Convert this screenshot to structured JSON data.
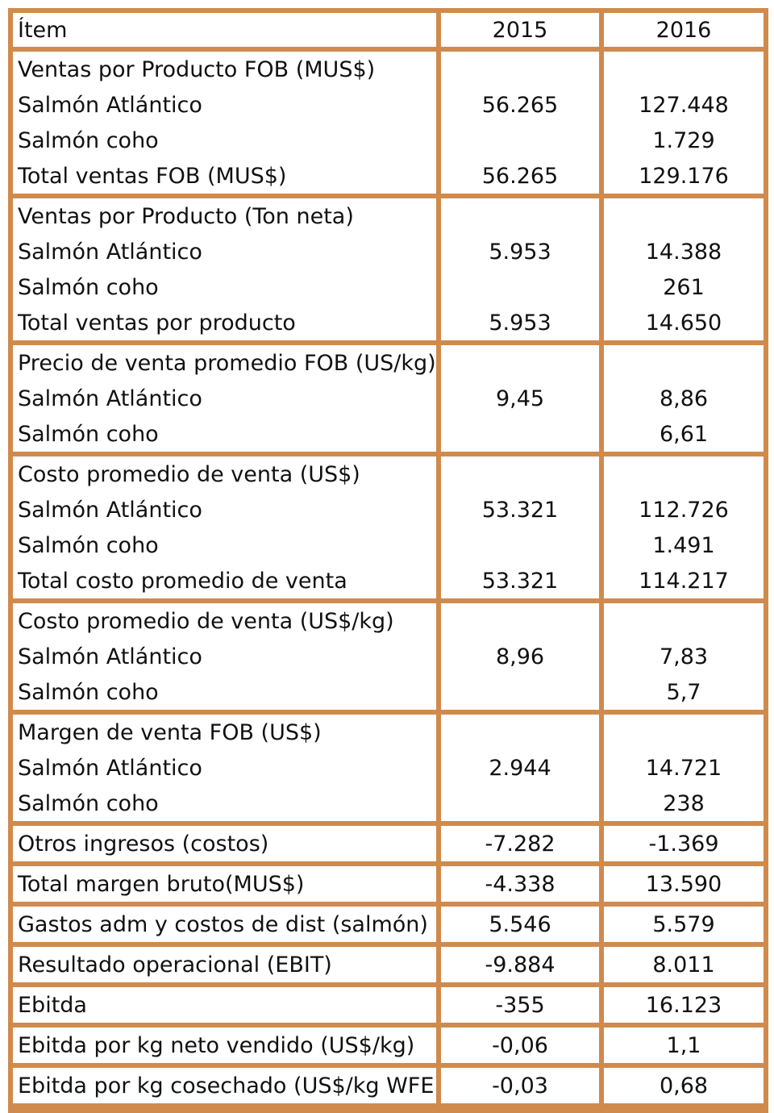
{
  "header": {
    "item": "Ítem",
    "y1": "2015",
    "y2": "2016"
  },
  "groups": [
    {
      "rows": [
        {
          "label": "Ventas por Producto FOB (MUS$)",
          "v2015": "",
          "v2016": ""
        },
        {
          "label": "Salmón Atlántico",
          "v2015": "56.265",
          "v2016": "127.448"
        },
        {
          "label": "Salmón coho",
          "v2015": "",
          "v2016": "1.729"
        },
        {
          "label": "Total ventas FOB (MUS$)",
          "v2015": "56.265",
          "v2016": "129.176"
        }
      ]
    },
    {
      "rows": [
        {
          "label": "Ventas por Producto (Ton neta)",
          "v2015": "",
          "v2016": ""
        },
        {
          "label": "Salmón Atlántico",
          "v2015": "5.953",
          "v2016": "14.388"
        },
        {
          "label": "Salmón coho",
          "v2015": "",
          "v2016": "261"
        },
        {
          "label": "Total ventas por producto",
          "v2015": "5.953",
          "v2016": "14.650"
        }
      ]
    },
    {
      "rows": [
        {
          "label": "Precio de venta promedio FOB (US/kg)",
          "v2015": "",
          "v2016": ""
        },
        {
          "label": "Salmón Atlántico",
          "v2015": "9,45",
          "v2016": "8,86"
        },
        {
          "label": "Salmón coho",
          "v2015": "",
          "v2016": "6,61"
        }
      ]
    },
    {
      "rows": [
        {
          "label": "Costo promedio de venta (US$)",
          "v2015": "",
          "v2016": ""
        },
        {
          "label": "Salmón Atlántico",
          "v2015": "53.321",
          "v2016": "112.726"
        },
        {
          "label": "Salmón coho",
          "v2015": "",
          "v2016": "1.491"
        },
        {
          "label": "Total costo promedio de venta",
          "v2015": "53.321",
          "v2016": "114.217"
        }
      ]
    },
    {
      "rows": [
        {
          "label": "Costo promedio de venta (US$/kg)",
          "v2015": "",
          "v2016": ""
        },
        {
          "label": "Salmón Atlántico",
          "v2015": "8,96",
          "v2016": "7,83"
        },
        {
          "label": "Salmón coho",
          "v2015": "",
          "v2016": "5,7"
        }
      ]
    },
    {
      "rows": [
        {
          "label": "Margen de venta FOB (US$)",
          "v2015": "",
          "v2016": ""
        },
        {
          "label": "Salmón Atlántico",
          "v2015": "2.944",
          "v2016": "14.721"
        },
        {
          "label": "Salmón coho",
          "v2015": "",
          "v2016": "238"
        }
      ]
    },
    {
      "rows": [
        {
          "label": "Otros ingresos (costos)",
          "v2015": "-7.282",
          "v2016": "-1.369"
        }
      ]
    },
    {
      "rows": [
        {
          "label": "Total margen bruto(MUS$)",
          "v2015": "-4.338",
          "v2016": "13.590"
        }
      ]
    },
    {
      "rows": [
        {
          "label": "Gastos adm y costos de dist (salmón)",
          "v2015": "5.546",
          "v2016": "5.579"
        }
      ]
    },
    {
      "rows": [
        {
          "label": "Resultado operacional (EBIT)",
          "v2015": "-9.884",
          "v2016": "8.011"
        }
      ]
    },
    {
      "rows": [
        {
          "label": "Ebitda",
          "v2015": "-355",
          "v2016": "16.123"
        }
      ]
    },
    {
      "rows": [
        {
          "label": "Ebitda por kg neto vendido (US$/kg)",
          "v2015": "-0,06",
          "v2016": "1,1"
        }
      ]
    },
    {
      "rows": [
        {
          "label": "Ebitda por kg cosechado (US$/kg WFE)",
          "v2015": "-0,03",
          "v2016": "0,68"
        }
      ]
    }
  ],
  "colors": {
    "border": "#d08a4c",
    "text": "#111111",
    "background": "#ffffff"
  }
}
